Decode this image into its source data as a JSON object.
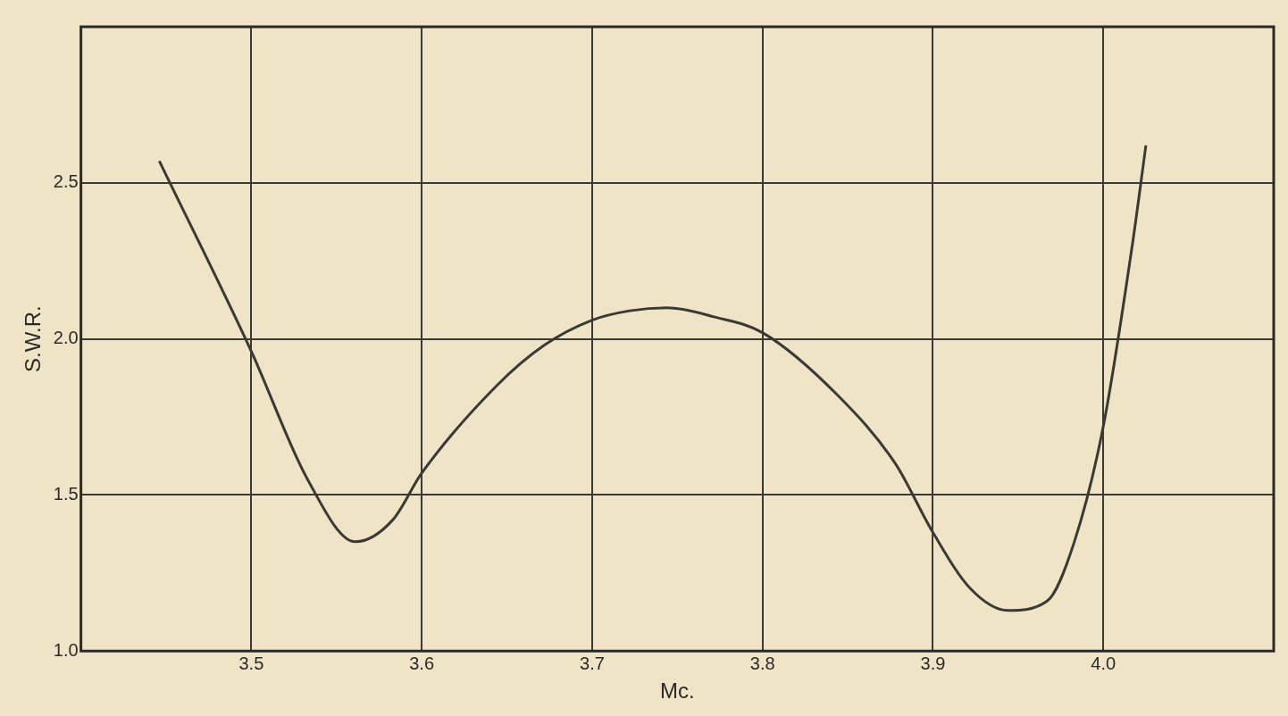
{
  "chart_data": {
    "type": "line",
    "xlabel": "Mc.",
    "ylabel": "S.W.R.",
    "xlim": [
      3.4,
      4.1
    ],
    "ylim": [
      1.0,
      3.0
    ],
    "xticks": [
      {
        "value": 3.5,
        "label": "3.5"
      },
      {
        "value": 3.6,
        "label": "3.6"
      },
      {
        "value": 3.7,
        "label": "3.7"
      },
      {
        "value": 3.8,
        "label": "3.8"
      },
      {
        "value": 3.9,
        "label": "3.9"
      },
      {
        "value": 4.0,
        "label": "4.0"
      }
    ],
    "yticks": [
      {
        "value": 1.0,
        "label": "1.0"
      },
      {
        "value": 1.5,
        "label": "1.5"
      },
      {
        "value": 2.0,
        "label": "2.0"
      },
      {
        "value": 2.5,
        "label": "2.5"
      }
    ],
    "grid": true,
    "marker": "none",
    "line_style": "solid",
    "series": [
      {
        "color": "#3a3a35",
        "x": [
          3.446,
          3.5,
          3.533,
          3.561,
          3.583,
          3.6,
          3.644,
          3.672,
          3.7,
          3.722,
          3.744,
          3.772,
          3.8,
          3.844,
          3.878,
          3.9,
          3.922,
          3.944,
          3.967,
          3.983,
          4.0,
          4.017,
          4.025
        ],
        "values": [
          2.57,
          1.96,
          1.55,
          1.35,
          1.42,
          1.57,
          1.85,
          1.98,
          2.06,
          2.09,
          2.1,
          2.07,
          2.02,
          1.82,
          1.6,
          1.38,
          1.2,
          1.13,
          1.16,
          1.35,
          1.72,
          2.3,
          2.62
        ]
      }
    ]
  }
}
